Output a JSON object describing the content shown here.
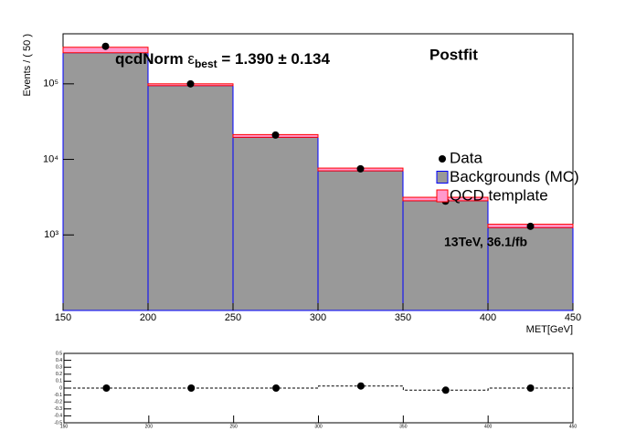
{
  "chart_data": [
    {
      "type": "histogram",
      "bins": [
        150,
        200,
        250,
        300,
        350,
        400,
        450
      ],
      "series": [
        {
          "name": "Data",
          "color": "#000000",
          "marker": "circle",
          "values": [
            314000,
            100000,
            21000,
            7500,
            2800,
            1300
          ]
        },
        {
          "name": "Backgrounds (MC)",
          "color": "#999999",
          "edgecolor": "#0000ff",
          "values": [
            258000,
            94600,
            19500,
            6950,
            2730,
            1150
          ]
        },
        {
          "name": "QCD template",
          "color": "#ff99cc",
          "edgecolor": "#ff0000",
          "values": [
            47000,
            5400,
            1700,
            620,
            320,
            135
          ]
        }
      ],
      "xlim": [
        150,
        450
      ],
      "xticks": [
        150,
        200,
        250,
        300,
        350,
        400,
        450
      ],
      "ylim": [
        100,
        460000
      ],
      "yscale": "log",
      "yticks": [
        {
          "value": 1000,
          "label": "10³"
        },
        {
          "value": 10000,
          "label": "10⁴"
        },
        {
          "value": 100000,
          "label": "10⁵"
        }
      ],
      "xlabel": "MET[GeV]",
      "ylabel": "Events / ( 50 )",
      "fit_label": {
        "name": "qcdNorm",
        "symbol": "ε",
        "subscript": "best",
        "value": "= 1.390",
        "error": "± 0.134"
      },
      "annotations": [
        "Postfit",
        "13TeV, 36.1/fb"
      ],
      "legend": "right"
    },
    {
      "type": "histogram",
      "bins": [
        150,
        200,
        250,
        300,
        350,
        400,
        450
      ],
      "values": [
        0,
        0,
        0,
        0.03,
        -0.03,
        0
      ],
      "color": "#000000",
      "xlim": [
        150,
        450
      ],
      "xticks": [
        150,
        200,
        250,
        300,
        350,
        400,
        450
      ],
      "ylim": [
        -0.5,
        0.5
      ],
      "yticks": [
        -0.5,
        -0.4,
        -0.3,
        -0.2,
        -0.1,
        0,
        0.1,
        0.2,
        0.3,
        0.4,
        0.5
      ]
    }
  ]
}
